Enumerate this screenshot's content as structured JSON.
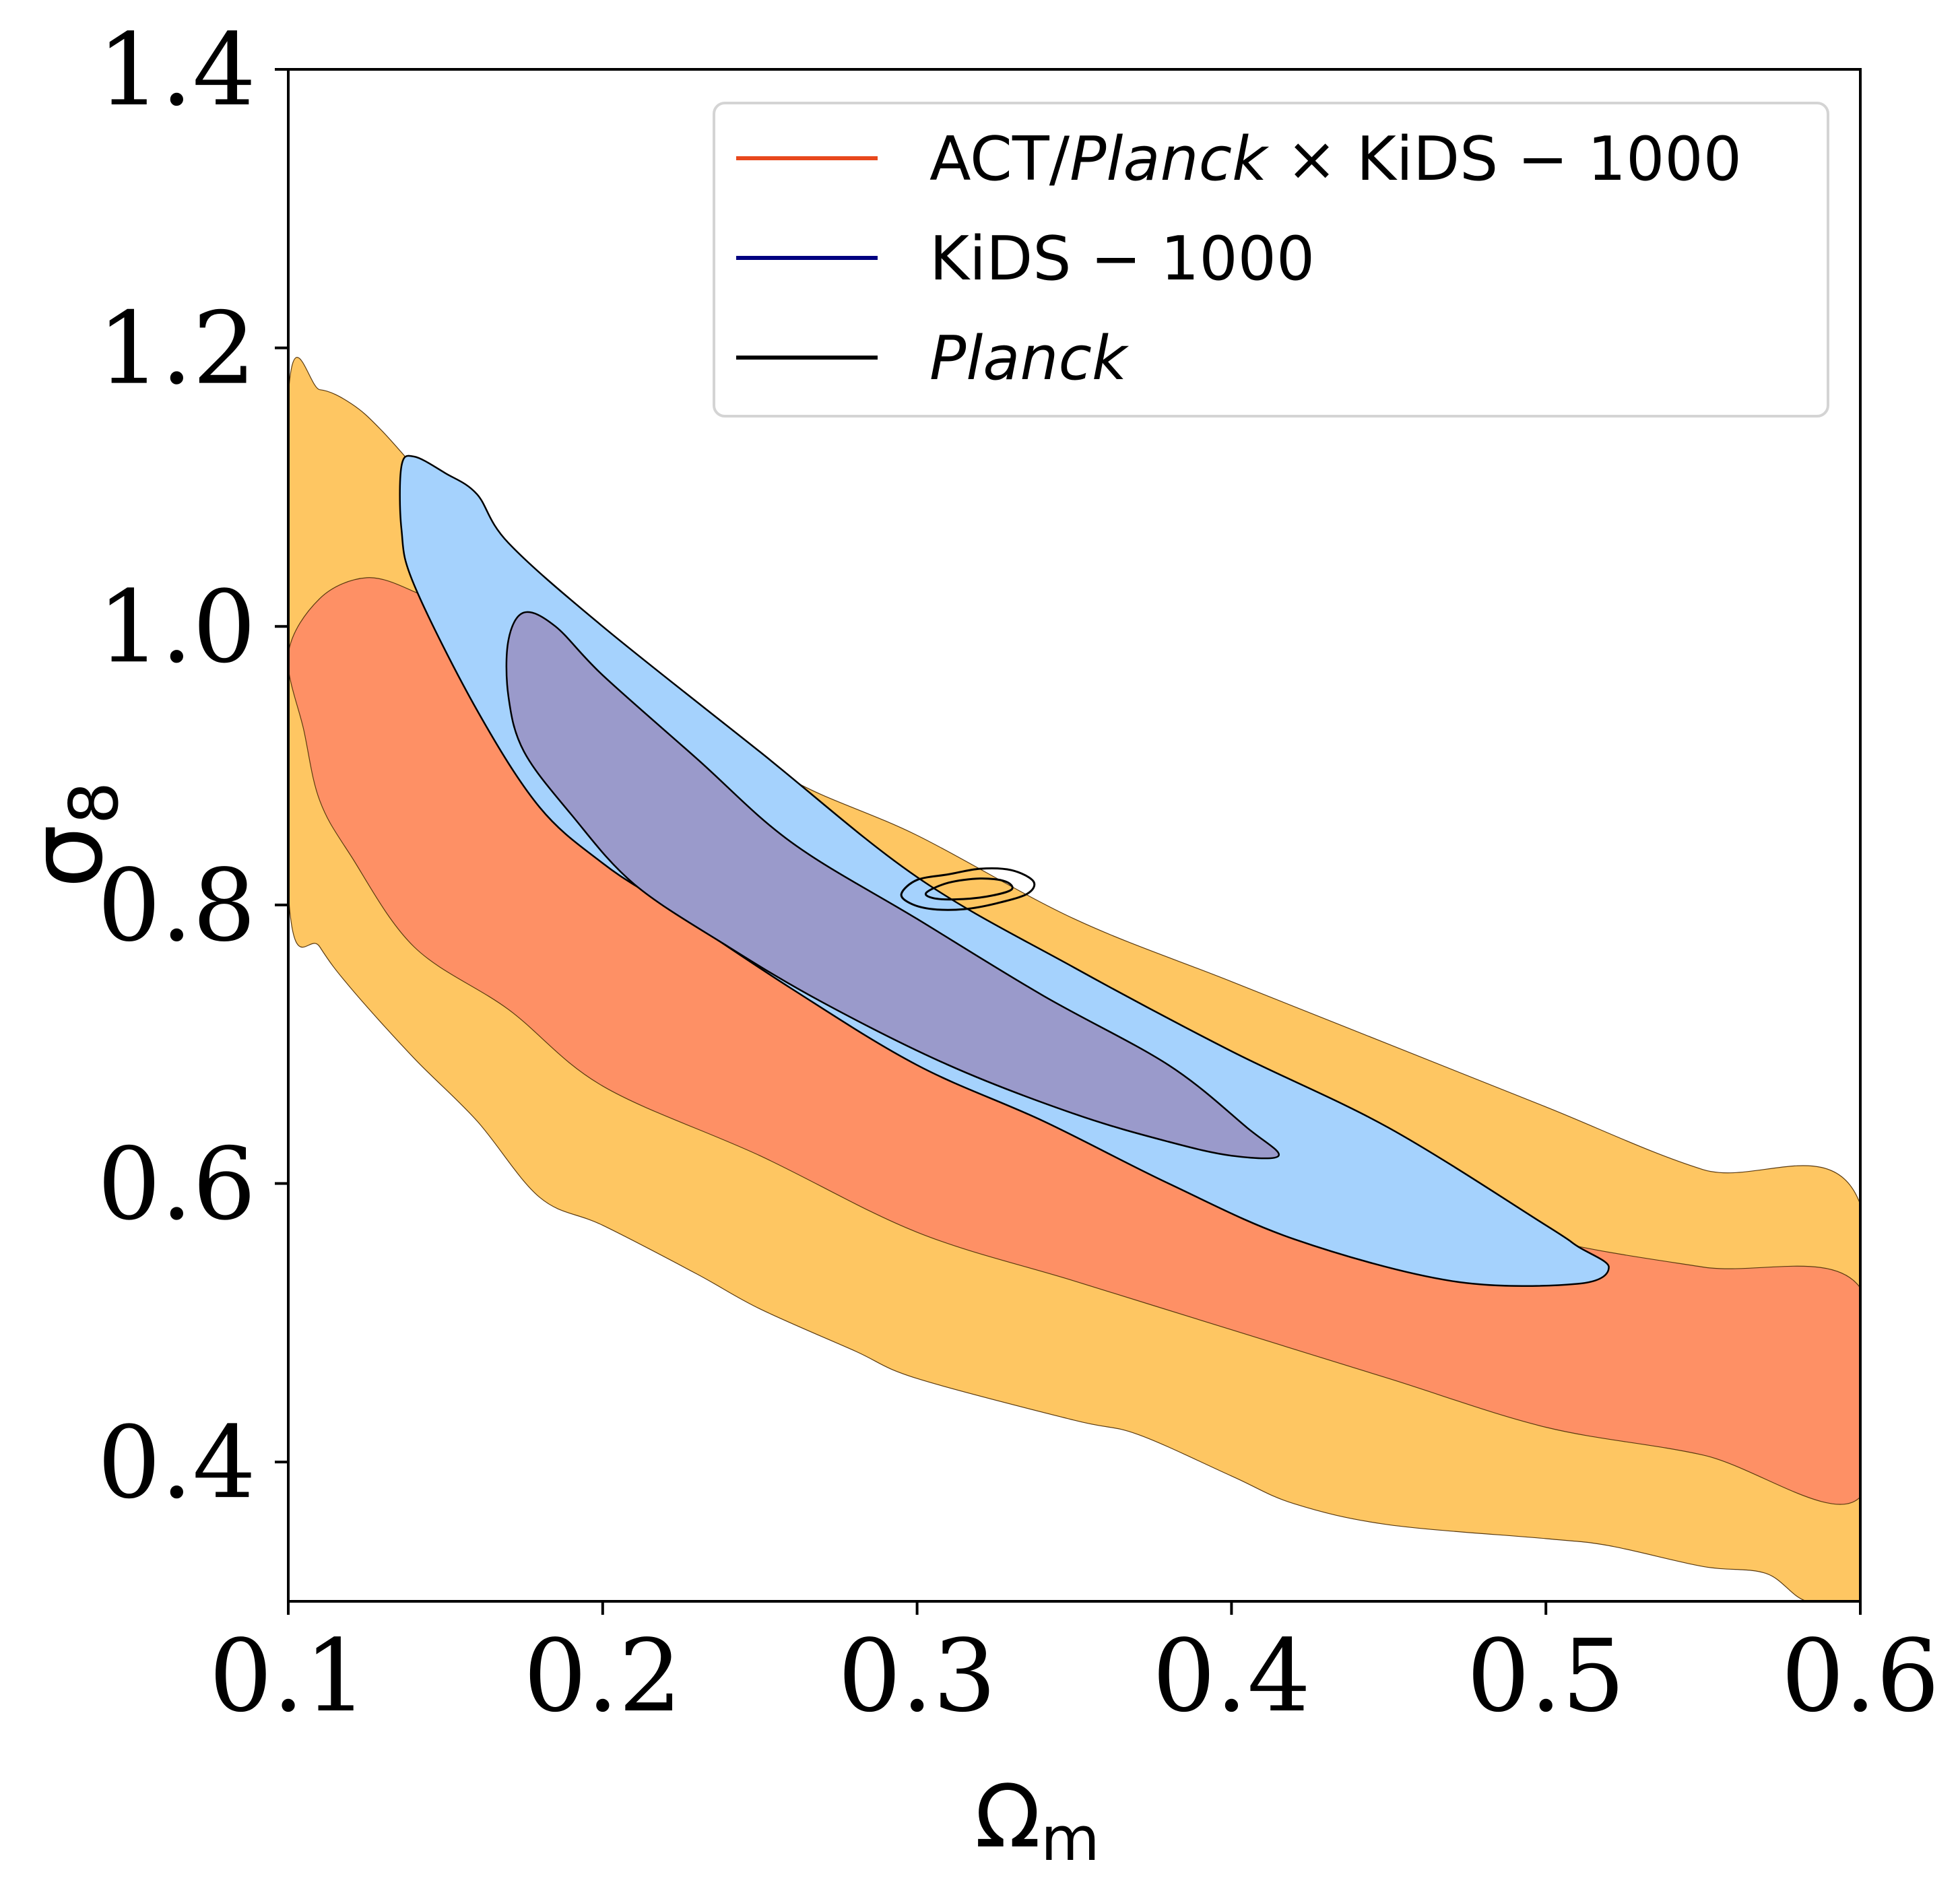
{
  "chart_data": {
    "type": "contour",
    "xlabel": "Ω",
    "xlabel_sub": "m",
    "ylabel": "σ",
    "ylabel_sub": "8",
    "xlim": [
      0.1,
      0.6
    ],
    "ylim": [
      0.3,
      1.4
    ],
    "xticks": [
      0.1,
      0.2,
      0.3,
      0.4,
      0.5,
      0.6
    ],
    "yticks": [
      0.4,
      0.6,
      0.8,
      1.0,
      1.2,
      1.4
    ],
    "xtick_labels": [
      "0.1",
      "0.2",
      "0.3",
      "0.4",
      "0.5",
      "0.6"
    ],
    "ytick_labels": [
      "0.4",
      "0.6",
      "0.8",
      "1.0",
      "1.2",
      "1.4"
    ],
    "grid": false,
    "legend_position": "top-right",
    "legend": [
      {
        "label_parts": [
          "ACT/",
          "Planck",
          " × KiDS − 1000"
        ],
        "italic_part": 1,
        "color": "#e8481c"
      },
      {
        "label_parts": [
          "KiDS − 1000"
        ],
        "italic_part": -1,
        "color": "#000080"
      },
      {
        "label_parts": [
          "Planck"
        ],
        "italic_part": 0,
        "color": "#000000"
      }
    ],
    "series": [
      {
        "name": "ACT/Planck × KiDS − 1000",
        "fill_95": "#fec662",
        "fill_68": "#fe9065",
        "edge": "#5a3a10",
        "contour_95": [
          [
            0.1,
            1.165
          ],
          [
            0.11,
            1.17
          ],
          [
            0.12,
            1.16
          ],
          [
            0.13,
            1.14
          ],
          [
            0.15,
            1.09
          ],
          [
            0.17,
            1.05
          ],
          [
            0.2,
            0.99
          ],
          [
            0.23,
            0.94
          ],
          [
            0.26,
            0.89
          ],
          [
            0.3,
            0.85
          ],
          [
            0.35,
            0.79
          ],
          [
            0.4,
            0.745
          ],
          [
            0.45,
            0.7
          ],
          [
            0.5,
            0.655
          ],
          [
            0.55,
            0.61
          ],
          [
            0.6,
            0.585
          ],
          [
            0.6,
            0.3
          ],
          [
            0.583,
            0.3
          ],
          [
            0.57,
            0.32
          ],
          [
            0.55,
            0.325
          ],
          [
            0.52,
            0.34
          ],
          [
            0.5,
            0.345
          ],
          [
            0.45,
            0.355
          ],
          [
            0.42,
            0.37
          ],
          [
            0.4,
            0.39
          ],
          [
            0.37,
            0.42
          ],
          [
            0.35,
            0.43
          ],
          [
            0.3,
            0.46
          ],
          [
            0.28,
            0.48
          ],
          [
            0.25,
            0.51
          ],
          [
            0.23,
            0.535
          ],
          [
            0.2,
            0.57
          ],
          [
            0.18,
            0.59
          ],
          [
            0.16,
            0.645
          ],
          [
            0.14,
            0.69
          ],
          [
            0.12,
            0.74
          ],
          [
            0.11,
            0.77
          ],
          [
            0.1,
            0.81
          ]
        ],
        "contour_68": [
          [
            0.1,
            0.98
          ],
          [
            0.11,
            1.02
          ],
          [
            0.125,
            1.035
          ],
          [
            0.14,
            1.025
          ],
          [
            0.15,
            1.01
          ],
          [
            0.17,
            0.96
          ],
          [
            0.2,
            0.895
          ],
          [
            0.23,
            0.84
          ],
          [
            0.26,
            0.795
          ],
          [
            0.3,
            0.745
          ],
          [
            0.35,
            0.675
          ],
          [
            0.4,
            0.63
          ],
          [
            0.45,
            0.595
          ],
          [
            0.5,
            0.56
          ],
          [
            0.55,
            0.54
          ],
          [
            0.6,
            0.525
          ],
          [
            0.6,
            0.375
          ],
          [
            0.55,
            0.405
          ],
          [
            0.5,
            0.425
          ],
          [
            0.45,
            0.46
          ],
          [
            0.4,
            0.495
          ],
          [
            0.35,
            0.53
          ],
          [
            0.3,
            0.565
          ],
          [
            0.25,
            0.62
          ],
          [
            0.2,
            0.67
          ],
          [
            0.17,
            0.725
          ],
          [
            0.14,
            0.77
          ],
          [
            0.12,
            0.835
          ],
          [
            0.11,
            0.875
          ],
          [
            0.105,
            0.925
          ]
        ]
      },
      {
        "name": "KiDS − 1000",
        "fill_95": "#a5d2fd",
        "fill_68": "#9a9acb",
        "edge": "#000000",
        "contour_95": [
          [
            0.136,
            1.115
          ],
          [
            0.14,
            1.122
          ],
          [
            0.15,
            1.11
          ],
          [
            0.16,
            1.095
          ],
          [
            0.17,
            1.06
          ],
          [
            0.2,
            1.0
          ],
          [
            0.25,
            0.91
          ],
          [
            0.3,
            0.82
          ],
          [
            0.35,
            0.755
          ],
          [
            0.4,
            0.695
          ],
          [
            0.45,
            0.64
          ],
          [
            0.5,
            0.57
          ],
          [
            0.51,
            0.555
          ],
          [
            0.52,
            0.54
          ],
          [
            0.51,
            0.528
          ],
          [
            0.47,
            0.53
          ],
          [
            0.42,
            0.56
          ],
          [
            0.38,
            0.6
          ],
          [
            0.34,
            0.645
          ],
          [
            0.3,
            0.685
          ],
          [
            0.26,
            0.74
          ],
          [
            0.22,
            0.8
          ],
          [
            0.2,
            0.83
          ],
          [
            0.18,
            0.87
          ],
          [
            0.16,
            0.94
          ],
          [
            0.14,
            1.03
          ],
          [
            0.136,
            1.07
          ]
        ],
        "contour_68": [
          [
            0.17,
            0.99
          ],
          [
            0.175,
            1.01
          ],
          [
            0.185,
            1.0
          ],
          [
            0.2,
            0.965
          ],
          [
            0.23,
            0.905
          ],
          [
            0.26,
            0.845
          ],
          [
            0.3,
            0.79
          ],
          [
            0.34,
            0.735
          ],
          [
            0.38,
            0.685
          ],
          [
            0.405,
            0.64
          ],
          [
            0.415,
            0.62
          ],
          [
            0.4,
            0.62
          ],
          [
            0.38,
            0.63
          ],
          [
            0.35,
            0.65
          ],
          [
            0.31,
            0.685
          ],
          [
            0.27,
            0.73
          ],
          [
            0.24,
            0.77
          ],
          [
            0.21,
            0.815
          ],
          [
            0.19,
            0.865
          ],
          [
            0.175,
            0.91
          ],
          [
            0.17,
            0.95
          ]
        ]
      },
      {
        "name": "Planck",
        "edge": "#000000",
        "contour_95": [
          [
            0.295,
            0.808
          ],
          [
            0.3,
            0.818
          ],
          [
            0.31,
            0.822
          ],
          [
            0.32,
            0.826
          ],
          [
            0.33,
            0.825
          ],
          [
            0.337,
            0.817
          ],
          [
            0.335,
            0.808
          ],
          [
            0.325,
            0.801
          ],
          [
            0.315,
            0.797
          ],
          [
            0.305,
            0.797
          ],
          [
            0.298,
            0.801
          ]
        ],
        "contour_68": [
          [
            0.303,
            0.809
          ],
          [
            0.31,
            0.816
          ],
          [
            0.32,
            0.819
          ],
          [
            0.328,
            0.817
          ],
          [
            0.33,
            0.811
          ],
          [
            0.322,
            0.806
          ],
          [
            0.312,
            0.804
          ],
          [
            0.305,
            0.805
          ]
        ]
      }
    ]
  }
}
